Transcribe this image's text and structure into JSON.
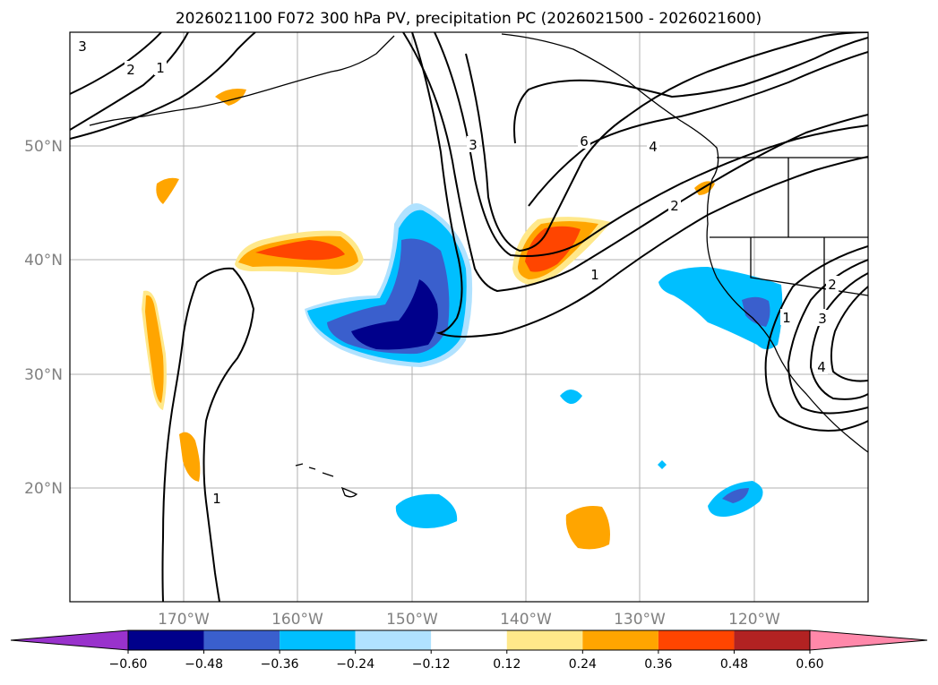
{
  "chart_data": {
    "type": "map",
    "title": "2026021100 F072 300 hPa PV, precipitation PC (2026021500 - 2026021600)",
    "lon_ticks": [
      "170°W",
      "160°W",
      "150°W",
      "140°W",
      "130°W",
      "120°W"
    ],
    "lat_ticks": [
      "50°N",
      "40°N",
      "30°N",
      "20°N"
    ],
    "extent": {
      "lon": [
        -180,
        -110
      ],
      "lat": [
        10,
        60
      ]
    },
    "grid": true,
    "pv_contours": [
      1,
      2,
      3,
      4,
      6
    ],
    "colorbar": {
      "ticks": [
        "−0.60",
        "−0.48",
        "−0.36",
        "−0.24",
        "−0.12",
        "0.12",
        "0.24",
        "0.36",
        "0.48",
        "0.60"
      ],
      "colors": [
        "#9932cc",
        "#00008b",
        "#3a5fcd",
        "#00bfff",
        "#b0e2ff",
        "#ffffff",
        "#ffe88a",
        "#ffa500",
        "#ff4500",
        "#b22222",
        "#ff88aa"
      ],
      "extend": "both"
    },
    "contour_labels": [
      {
        "text": "3"
      },
      {
        "text": "2"
      },
      {
        "text": "1"
      },
      {
        "text": "3"
      },
      {
        "text": "6"
      },
      {
        "text": "4"
      },
      {
        "text": "2"
      },
      {
        "text": "1"
      },
      {
        "text": "1"
      },
      {
        "text": "2"
      },
      {
        "text": "3"
      },
      {
        "text": "4"
      },
      {
        "text": "1"
      }
    ]
  }
}
